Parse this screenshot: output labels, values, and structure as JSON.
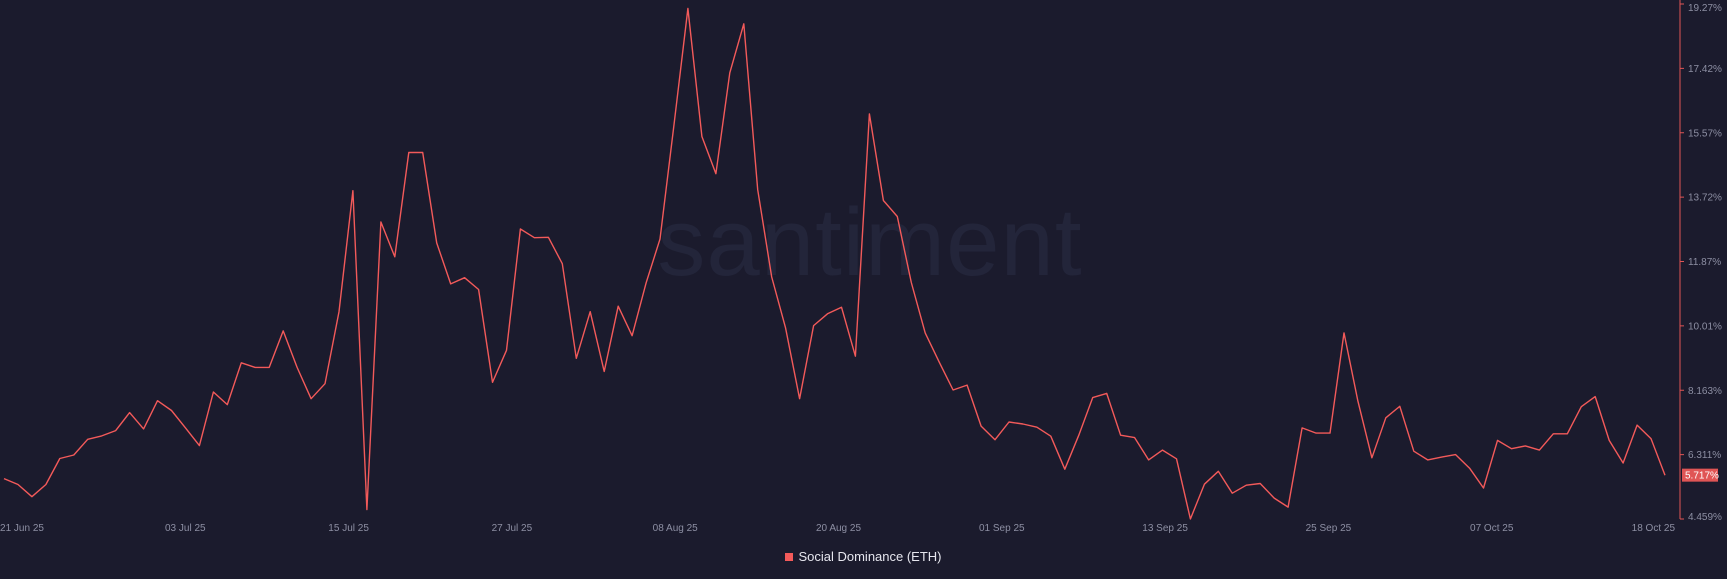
{
  "watermark": "santiment",
  "colors": {
    "background": "#1b1b2d",
    "line": "#f35a5a",
    "axis": "#e05555",
    "text": "#8d8fa3",
    "badge_text": "#ffffff"
  },
  "legend": {
    "label": "Social Dominance (ETH)"
  },
  "chart_data": {
    "type": "line",
    "title": "",
    "xlabel": "",
    "ylabel": "",
    "ylim": [
      4.459,
      19.27
    ],
    "y_ticks": [
      "19.27%",
      "17.42%",
      "15.57%",
      "13.72%",
      "11.87%",
      "10.01%",
      "8.163%",
      "6.311%",
      "4.459%"
    ],
    "x_ticks": [
      "21 Jun 25",
      "03 Jul 25",
      "15 Jul 25",
      "27 Jul 25",
      "08 Aug 25",
      "20 Aug 25",
      "01 Sep 25",
      "13 Sep 25",
      "25 Sep 25",
      "07 Oct 25",
      "18 Oct 25"
    ],
    "current_value_label": "5.717%",
    "grid": false,
    "series": [
      {
        "name": "Social Dominance (ETH)",
        "values": [
          5.62,
          5.45,
          5.1,
          5.45,
          6.2,
          6.3,
          6.75,
          6.85,
          7.0,
          7.52,
          7.05,
          7.86,
          7.58,
          7.08,
          6.57,
          8.11,
          7.75,
          8.95,
          8.82,
          8.82,
          9.87,
          8.82,
          7.92,
          8.35,
          10.42,
          13.9,
          4.73,
          13.0,
          12.0,
          15.0,
          15.0,
          12.4,
          11.22,
          11.4,
          11.06,
          8.39,
          9.31,
          12.8,
          12.55,
          12.56,
          11.8,
          9.08,
          10.42,
          8.7,
          10.58,
          9.73,
          11.25,
          12.51,
          15.8,
          19.14,
          15.46,
          14.39,
          17.29,
          18.7,
          13.93,
          11.42,
          9.95,
          7.92,
          10.02,
          10.36,
          10.55,
          9.14,
          16.11,
          13.62,
          13.16,
          11.26,
          9.81,
          8.97,
          8.17,
          8.31,
          7.13,
          6.74,
          7.25,
          7.19,
          7.1,
          6.84,
          5.89,
          6.87,
          7.95,
          8.07,
          6.87,
          6.8,
          6.16,
          6.44,
          6.19,
          4.46,
          5.46,
          5.83,
          5.2,
          5.43,
          5.48,
          5.06,
          4.8,
          7.08,
          6.93,
          6.93,
          9.81,
          7.85,
          6.22,
          7.37,
          7.7,
          6.41,
          6.16,
          6.24,
          6.31,
          5.92,
          5.35,
          6.72,
          6.48,
          6.56,
          6.44,
          6.91,
          6.91,
          7.69,
          7.98,
          6.72,
          6.07,
          7.16,
          6.77,
          5.72
        ]
      }
    ]
  }
}
